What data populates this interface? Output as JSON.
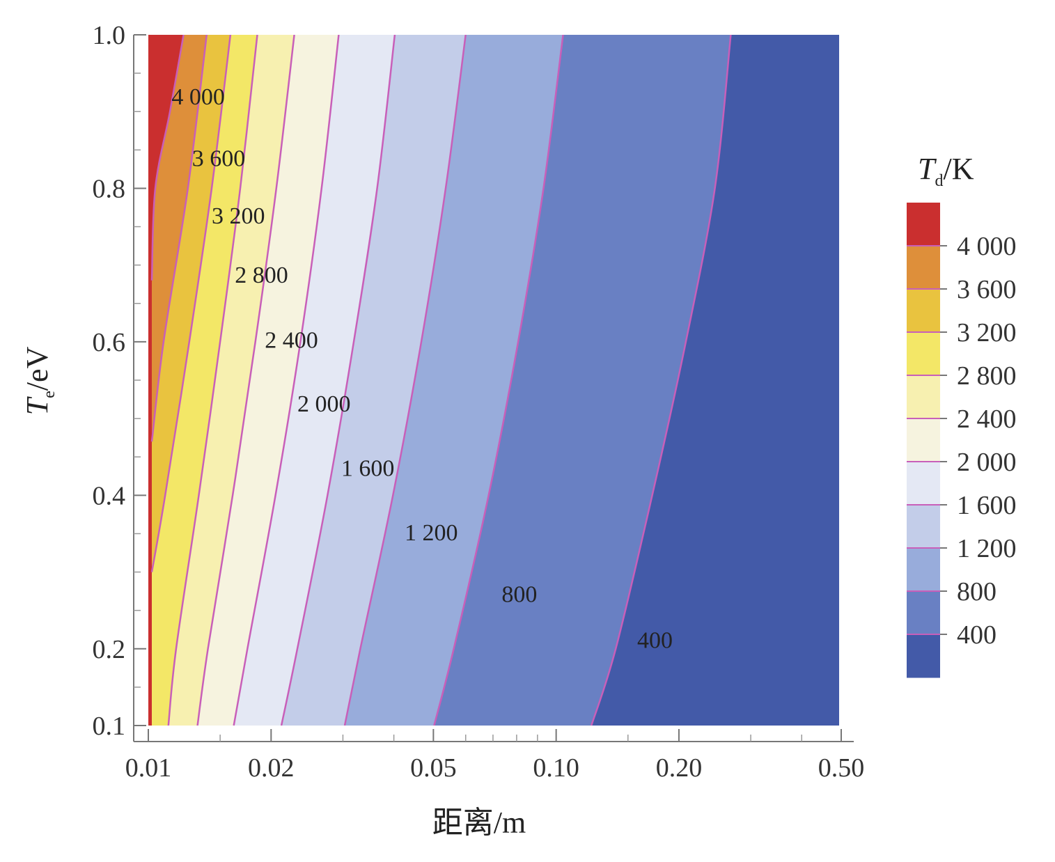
{
  "chart_data": {
    "type": "contour",
    "xlabel": "距离/m",
    "ylabel": {
      "var": "T",
      "sub": "e",
      "unit": "/eV"
    },
    "colorbar_title": {
      "var": "T",
      "sub": "d",
      "unit": "/K"
    },
    "x_scale": "log",
    "xlim": [
      0.01,
      0.5
    ],
    "ylim": [
      0.1,
      1.0
    ],
    "x_ticks": [
      {
        "v": 0.01,
        "label": "0.01"
      },
      {
        "v": 0.02,
        "label": "0.02"
      },
      {
        "v": 0.05,
        "label": "0.05"
      },
      {
        "v": 0.1,
        "label": "0.10"
      },
      {
        "v": 0.2,
        "label": "0.20"
      },
      {
        "v": 0.5,
        "label": "0.50"
      }
    ],
    "x_minor_ticks": [
      0.015,
      0.03,
      0.04,
      0.06,
      0.07,
      0.08,
      0.09,
      0.15,
      0.3,
      0.4
    ],
    "y_ticks": [
      {
        "v": 0.1,
        "label": "0.1"
      },
      {
        "v": 0.2,
        "label": "0.2"
      },
      {
        "v": 0.4,
        "label": "0.4"
      },
      {
        "v": 0.6,
        "label": "0.6"
      },
      {
        "v": 0.8,
        "label": "0.8"
      },
      {
        "v": 1.0,
        "label": "1.0"
      }
    ],
    "y_minor_ticks": [
      0.15,
      0.25,
      0.3,
      0.35,
      0.45,
      0.5,
      0.55,
      0.65,
      0.7,
      0.75,
      0.85,
      0.9,
      0.95
    ],
    "levels": [
      {
        "value": 4000,
        "label": "4 000",
        "label_at": [
          0.0114,
          0.92
        ],
        "x_at_te": [
          [
            0.68,
            0.0102
          ],
          [
            0.8,
            0.0104
          ],
          [
            0.9,
            0.0113
          ],
          [
            1.0,
            0.0122
          ]
        ]
      },
      {
        "value": 3600,
        "label": "3 600",
        "label_at": [
          0.0128,
          0.84
        ],
        "x_at_te": [
          [
            0.47,
            0.0102
          ],
          [
            0.6,
            0.0109
          ],
          [
            0.8,
            0.0125
          ],
          [
            1.0,
            0.0139
          ]
        ]
      },
      {
        "value": 3200,
        "label": "3 200",
        "label_at": [
          0.0143,
          0.765
        ],
        "x_at_te": [
          [
            0.3,
            0.0102
          ],
          [
            0.4,
            0.011
          ],
          [
            0.6,
            0.0126
          ],
          [
            0.8,
            0.0143
          ],
          [
            1.0,
            0.0159
          ]
        ]
      },
      {
        "value": 2800,
        "label": "2 800",
        "label_at": [
          0.0163,
          0.688
        ],
        "x_at_te": [
          [
            0.1,
            0.0112
          ],
          [
            0.2,
            0.0117
          ],
          [
            0.4,
            0.0133
          ],
          [
            0.6,
            0.015
          ],
          [
            0.8,
            0.0168
          ],
          [
            1.0,
            0.0185
          ]
        ]
      },
      {
        "value": 2400,
        "label": "2 400",
        "label_at": [
          0.0193,
          0.603
        ],
        "x_at_te": [
          [
            0.1,
            0.0132
          ],
          [
            0.2,
            0.014
          ],
          [
            0.4,
            0.0161
          ],
          [
            0.6,
            0.0183
          ],
          [
            0.8,
            0.0206
          ],
          [
            1.0,
            0.0228
          ]
        ]
      },
      {
        "value": 2000,
        "label": "2 000",
        "label_at": [
          0.0232,
          0.52
        ],
        "x_at_te": [
          [
            0.1,
            0.0162
          ],
          [
            0.2,
            0.0175
          ],
          [
            0.4,
            0.0205
          ],
          [
            0.6,
            0.0236
          ],
          [
            0.8,
            0.0266
          ],
          [
            1.0,
            0.0293
          ]
        ]
      },
      {
        "value": 1600,
        "label": "1 600",
        "label_at": [
          0.0297,
          0.436
        ],
        "x_at_te": [
          [
            0.1,
            0.0212
          ],
          [
            0.2,
            0.0232
          ],
          [
            0.4,
            0.0275
          ],
          [
            0.6,
            0.0319
          ],
          [
            0.8,
            0.0364
          ],
          [
            1.0,
            0.0402
          ]
        ]
      },
      {
        "value": 1200,
        "label": "1 200",
        "label_at": [
          0.0425,
          0.352
        ],
        "x_at_te": [
          [
            0.1,
            0.0303
          ],
          [
            0.2,
            0.0331
          ],
          [
            0.4,
            0.0398
          ],
          [
            0.6,
            0.0467
          ],
          [
            0.8,
            0.0536
          ],
          [
            1.0,
            0.06
          ]
        ]
      },
      {
        "value": 800,
        "label": "800",
        "label_at": [
          0.0735,
          0.272
        ],
        "x_at_te": [
          [
            0.1,
            0.0502
          ],
          [
            0.2,
            0.0561
          ],
          [
            0.4,
            0.0683
          ],
          [
            0.6,
            0.0807
          ],
          [
            0.8,
            0.0931
          ],
          [
            1.0,
            0.104
          ]
        ]
      },
      {
        "value": 400,
        "label": "400",
        "label_at": [
          0.158,
          0.212
        ],
        "x_at_te": [
          [
            0.1,
            0.122
          ],
          [
            0.2,
            0.14
          ],
          [
            0.4,
            0.172
          ],
          [
            0.6,
            0.208
          ],
          [
            0.8,
            0.245
          ],
          [
            1.0,
            0.268
          ]
        ]
      }
    ],
    "band_colors": [
      "#ca2f2f",
      "#de8f3a",
      "#e9c33f",
      "#f3e767",
      "#f7f0b0",
      "#f6f3df",
      "#e4e8f4",
      "#c3cde9",
      "#98acdb",
      "#6980c3",
      "#435aa8"
    ],
    "contour_line_color": "#c85fb9",
    "colorbar_ticks": [
      "4 000",
      "3 600",
      "3 200",
      "2 800",
      "2 400",
      "2 000",
      "1 600",
      "1 200",
      "800",
      "400"
    ]
  }
}
